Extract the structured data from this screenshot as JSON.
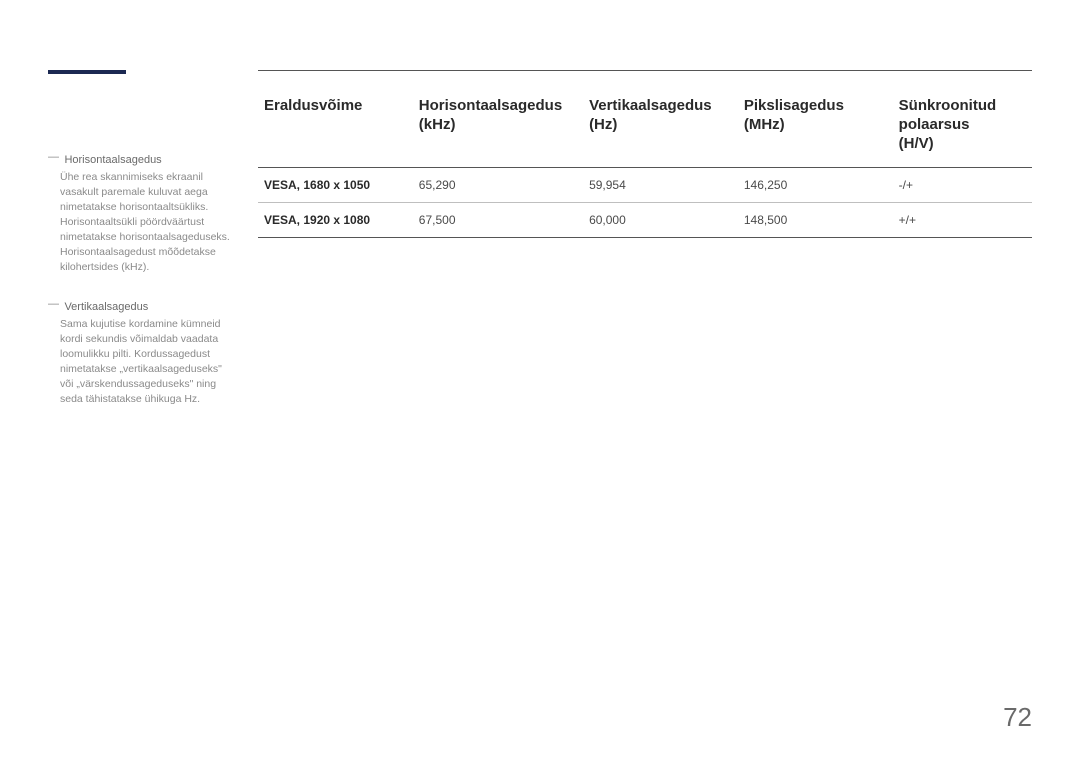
{
  "accent_color": "#1c2952",
  "sidebar": {
    "items": [
      {
        "term": "Horisontaalsagedus",
        "desc": "Ühe rea skannimiseks ekraanil vasakult paremale kuluvat aega nimetatakse horisontaaltsükliks. Horisontaaltsükli pöördväärtust nimetatakse horisontaalsageduseks. Horisontaalsagedust mõõdetakse kilohertsides (kHz)."
      },
      {
        "term": "Vertikaalsagedus",
        "desc": "Sama kujutise kordamine kümneid kordi sekundis võimaldab vaadata loomulikku pilti. Kordussagedust nimetatakse „vertikaalsageduseks\" või „värskendussageduseks\" ning seda tähistatakse ühikuga Hz."
      }
    ]
  },
  "table": {
    "columns": [
      "Eraldusvõime",
      "Horisontaalsagedus (kHz)",
      "Vertikaalsagedus (Hz)",
      "Pikslisagedus (MHz)",
      "Sünkroonitud polaarsus (H/V)"
    ],
    "column_headers": {
      "c0l1": "Eraldusvõime",
      "c1l1": "Horisontaalsagedus",
      "c1l2": "(kHz)",
      "c2l1": "Vertikaalsagedus",
      "c2l2": "(Hz)",
      "c3l1": "Pikslisagedus",
      "c3l2": "(MHz)",
      "c4l1": "Sünkroonitud",
      "c4l2": "polaarsus",
      "c4l3": "(H/V)"
    },
    "rows": [
      {
        "mode": "VESA, 1680 x 1050",
        "hfreq": "65,290",
        "vfreq": "59,954",
        "pclk": "146,250",
        "pol": "-/+"
      },
      {
        "mode": "VESA, 1920 x 1080",
        "hfreq": "67,500",
        "vfreq": "60,000",
        "pclk": "148,500",
        "pol": "+/+"
      }
    ]
  },
  "page_number": "72",
  "styling": {
    "page_bg": "#ffffff",
    "rule_color": "#555555",
    "row_rule_color": "#bfbfbf",
    "header_text_color": "#2a2a2a",
    "body_text_color": "#4a4a4a",
    "side_term_color": "#6a6a6a",
    "side_desc_color": "#8a8a8a",
    "header_fontsize_pt": 15,
    "body_fontsize_pt": 12,
    "side_fontsize_pt": 10.5,
    "pagenum_fontsize_pt": 26
  }
}
